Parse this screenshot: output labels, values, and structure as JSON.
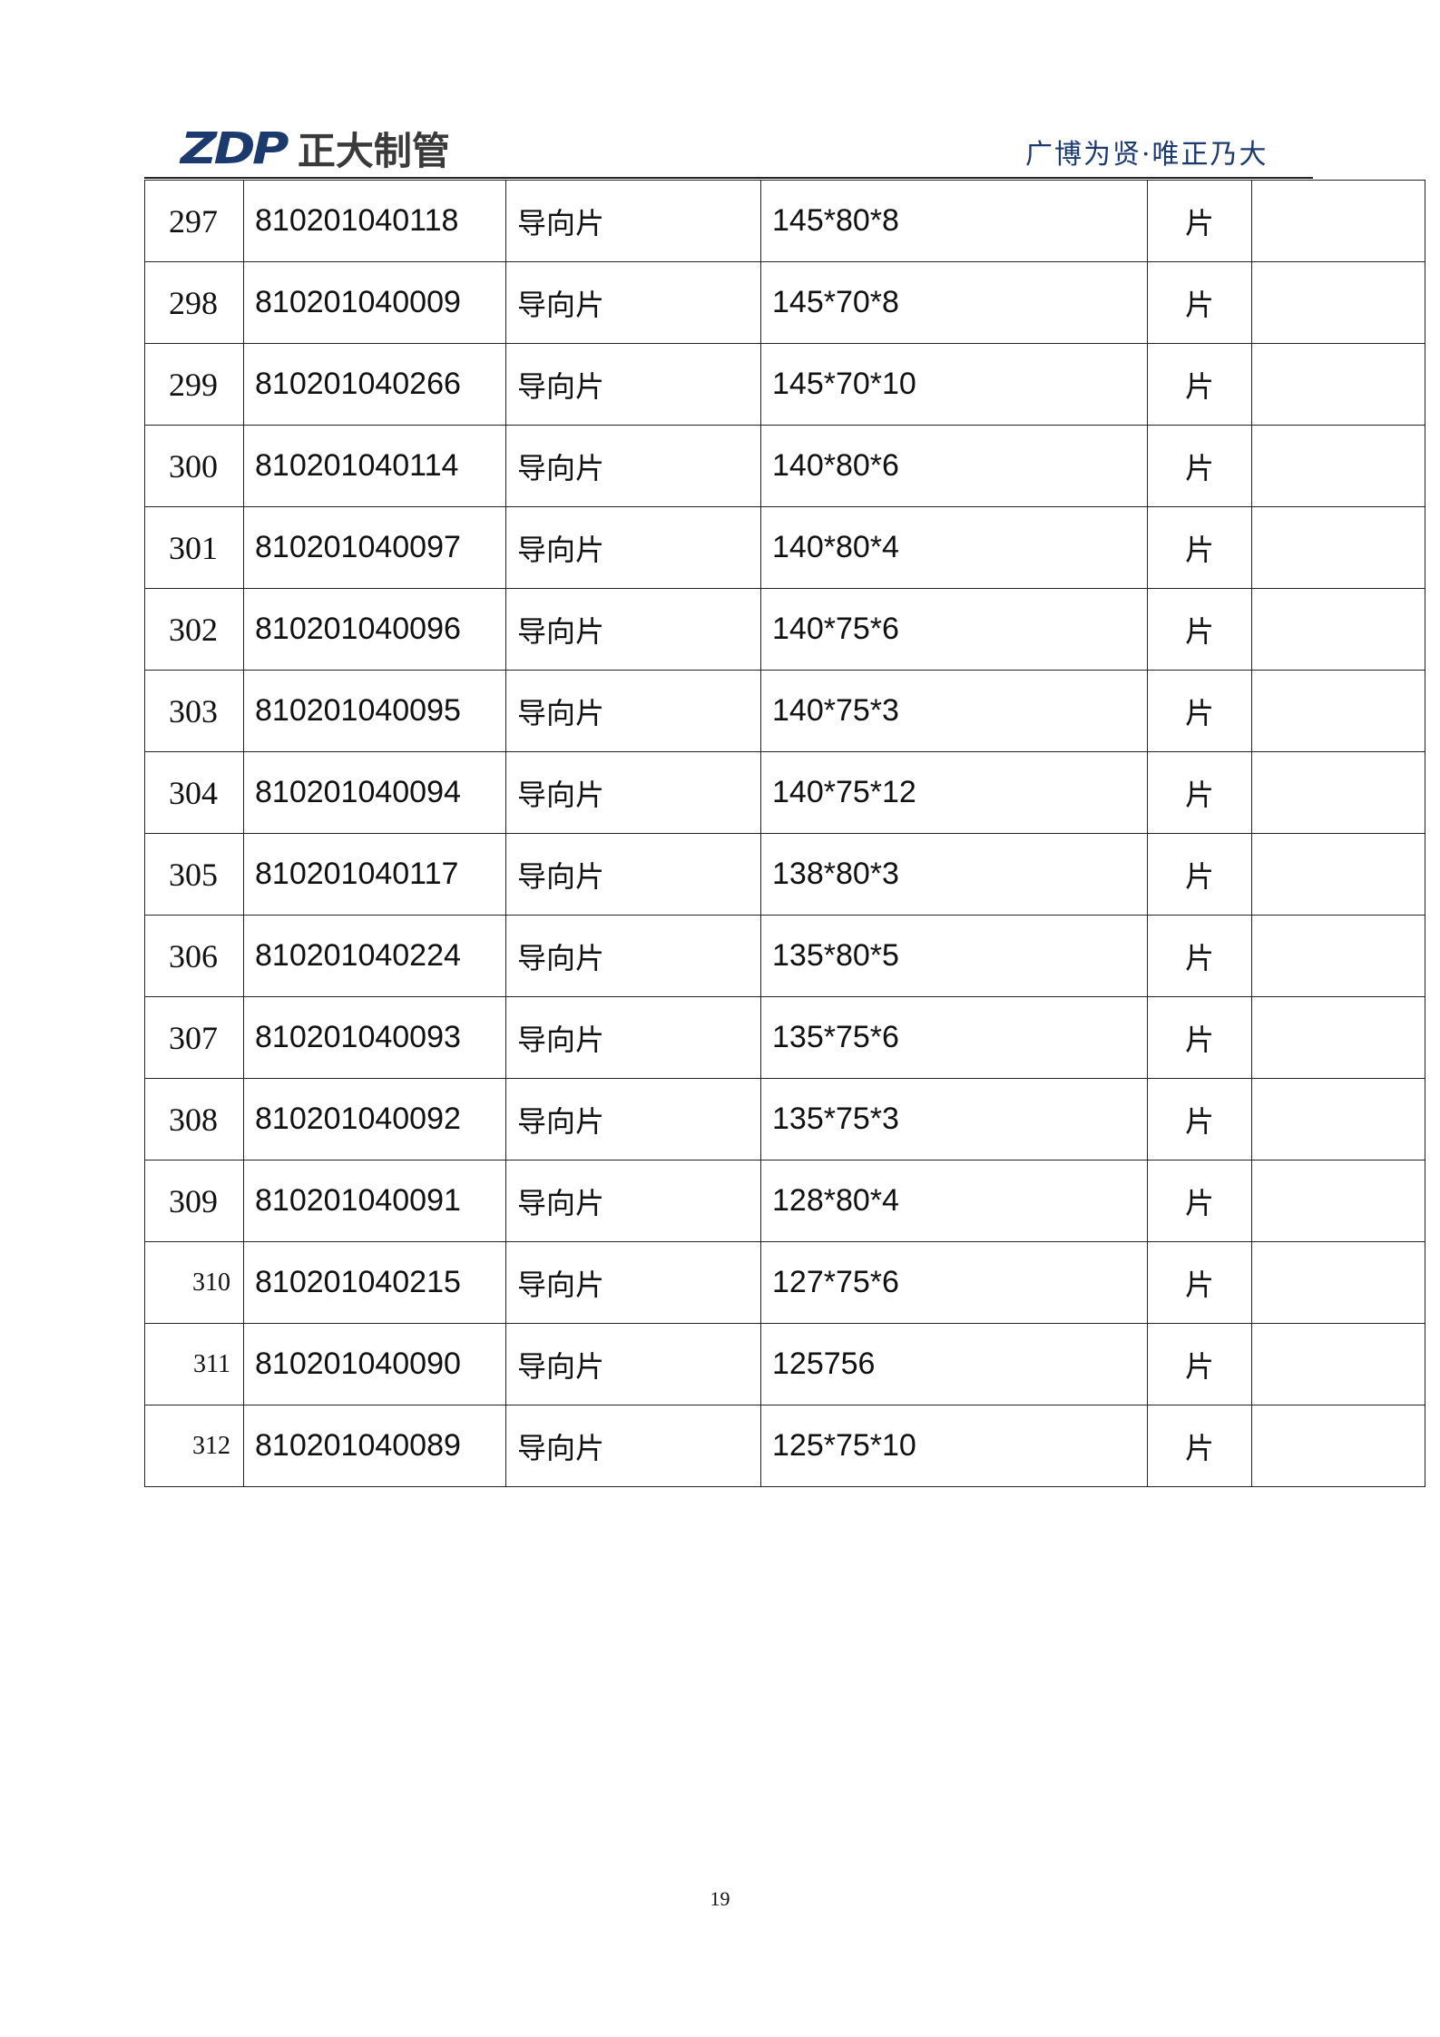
{
  "header": {
    "logo_mark": "ZDP",
    "logo_text": "正大制管",
    "slogan": "广博为贤·唯正乃大",
    "brand_color": "#1d3a6e"
  },
  "rows": [
    {
      "no": "297",
      "code": "810201040118",
      "name": "导向片",
      "spec": "145*80*8",
      "unit": "片",
      "note": ""
    },
    {
      "no": "298",
      "code": "810201040009",
      "name": "导向片",
      "spec": "145*70*8",
      "unit": "片",
      "note": ""
    },
    {
      "no": "299",
      "code": "810201040266",
      "name": "导向片",
      "spec": "145*70*10",
      "unit": "片",
      "note": ""
    },
    {
      "no": "300",
      "code": "810201040114",
      "name": "导向片",
      "spec": "140*80*6",
      "unit": "片",
      "note": ""
    },
    {
      "no": "301",
      "code": "810201040097",
      "name": "导向片",
      "spec": "140*80*4",
      "unit": "片",
      "note": ""
    },
    {
      "no": "302",
      "code": "810201040096",
      "name": "导向片",
      "spec": "140*75*6",
      "unit": "片",
      "note": ""
    },
    {
      "no": "303",
      "code": "810201040095",
      "name": "导向片",
      "spec": "140*75*3",
      "unit": "片",
      "note": ""
    },
    {
      "no": "304",
      "code": "810201040094",
      "name": "导向片",
      "spec": "140*75*12",
      "unit": "片",
      "note": ""
    },
    {
      "no": "305",
      "code": "810201040117",
      "name": "导向片",
      "spec": "138*80*3",
      "unit": "片",
      "note": ""
    },
    {
      "no": "306",
      "code": "810201040224",
      "name": "导向片",
      "spec": "135*80*5",
      "unit": "片",
      "note": ""
    },
    {
      "no": "307",
      "code": "810201040093",
      "name": "导向片",
      "spec": "135*75*6",
      "unit": "片",
      "note": ""
    },
    {
      "no": "308",
      "code": "810201040092",
      "name": "导向片",
      "spec": "135*75*3",
      "unit": "片",
      "note": ""
    },
    {
      "no": "309",
      "code": "810201040091",
      "name": "导向片",
      "spec": "128*80*4",
      "unit": "片",
      "note": ""
    },
    {
      "no": "310",
      "code": "810201040215",
      "name": "导向片",
      "spec": "127*75*6",
      "unit": "片",
      "note": ""
    },
    {
      "no": "311",
      "code": "810201040090",
      "name": "导向片",
      "spec": "125756",
      "unit": "片",
      "note": ""
    },
    {
      "no": "312",
      "code": "810201040089",
      "name": "导向片",
      "spec": "125*75*10",
      "unit": "片",
      "note": ""
    }
  ],
  "footer": {
    "page_number": "19"
  }
}
